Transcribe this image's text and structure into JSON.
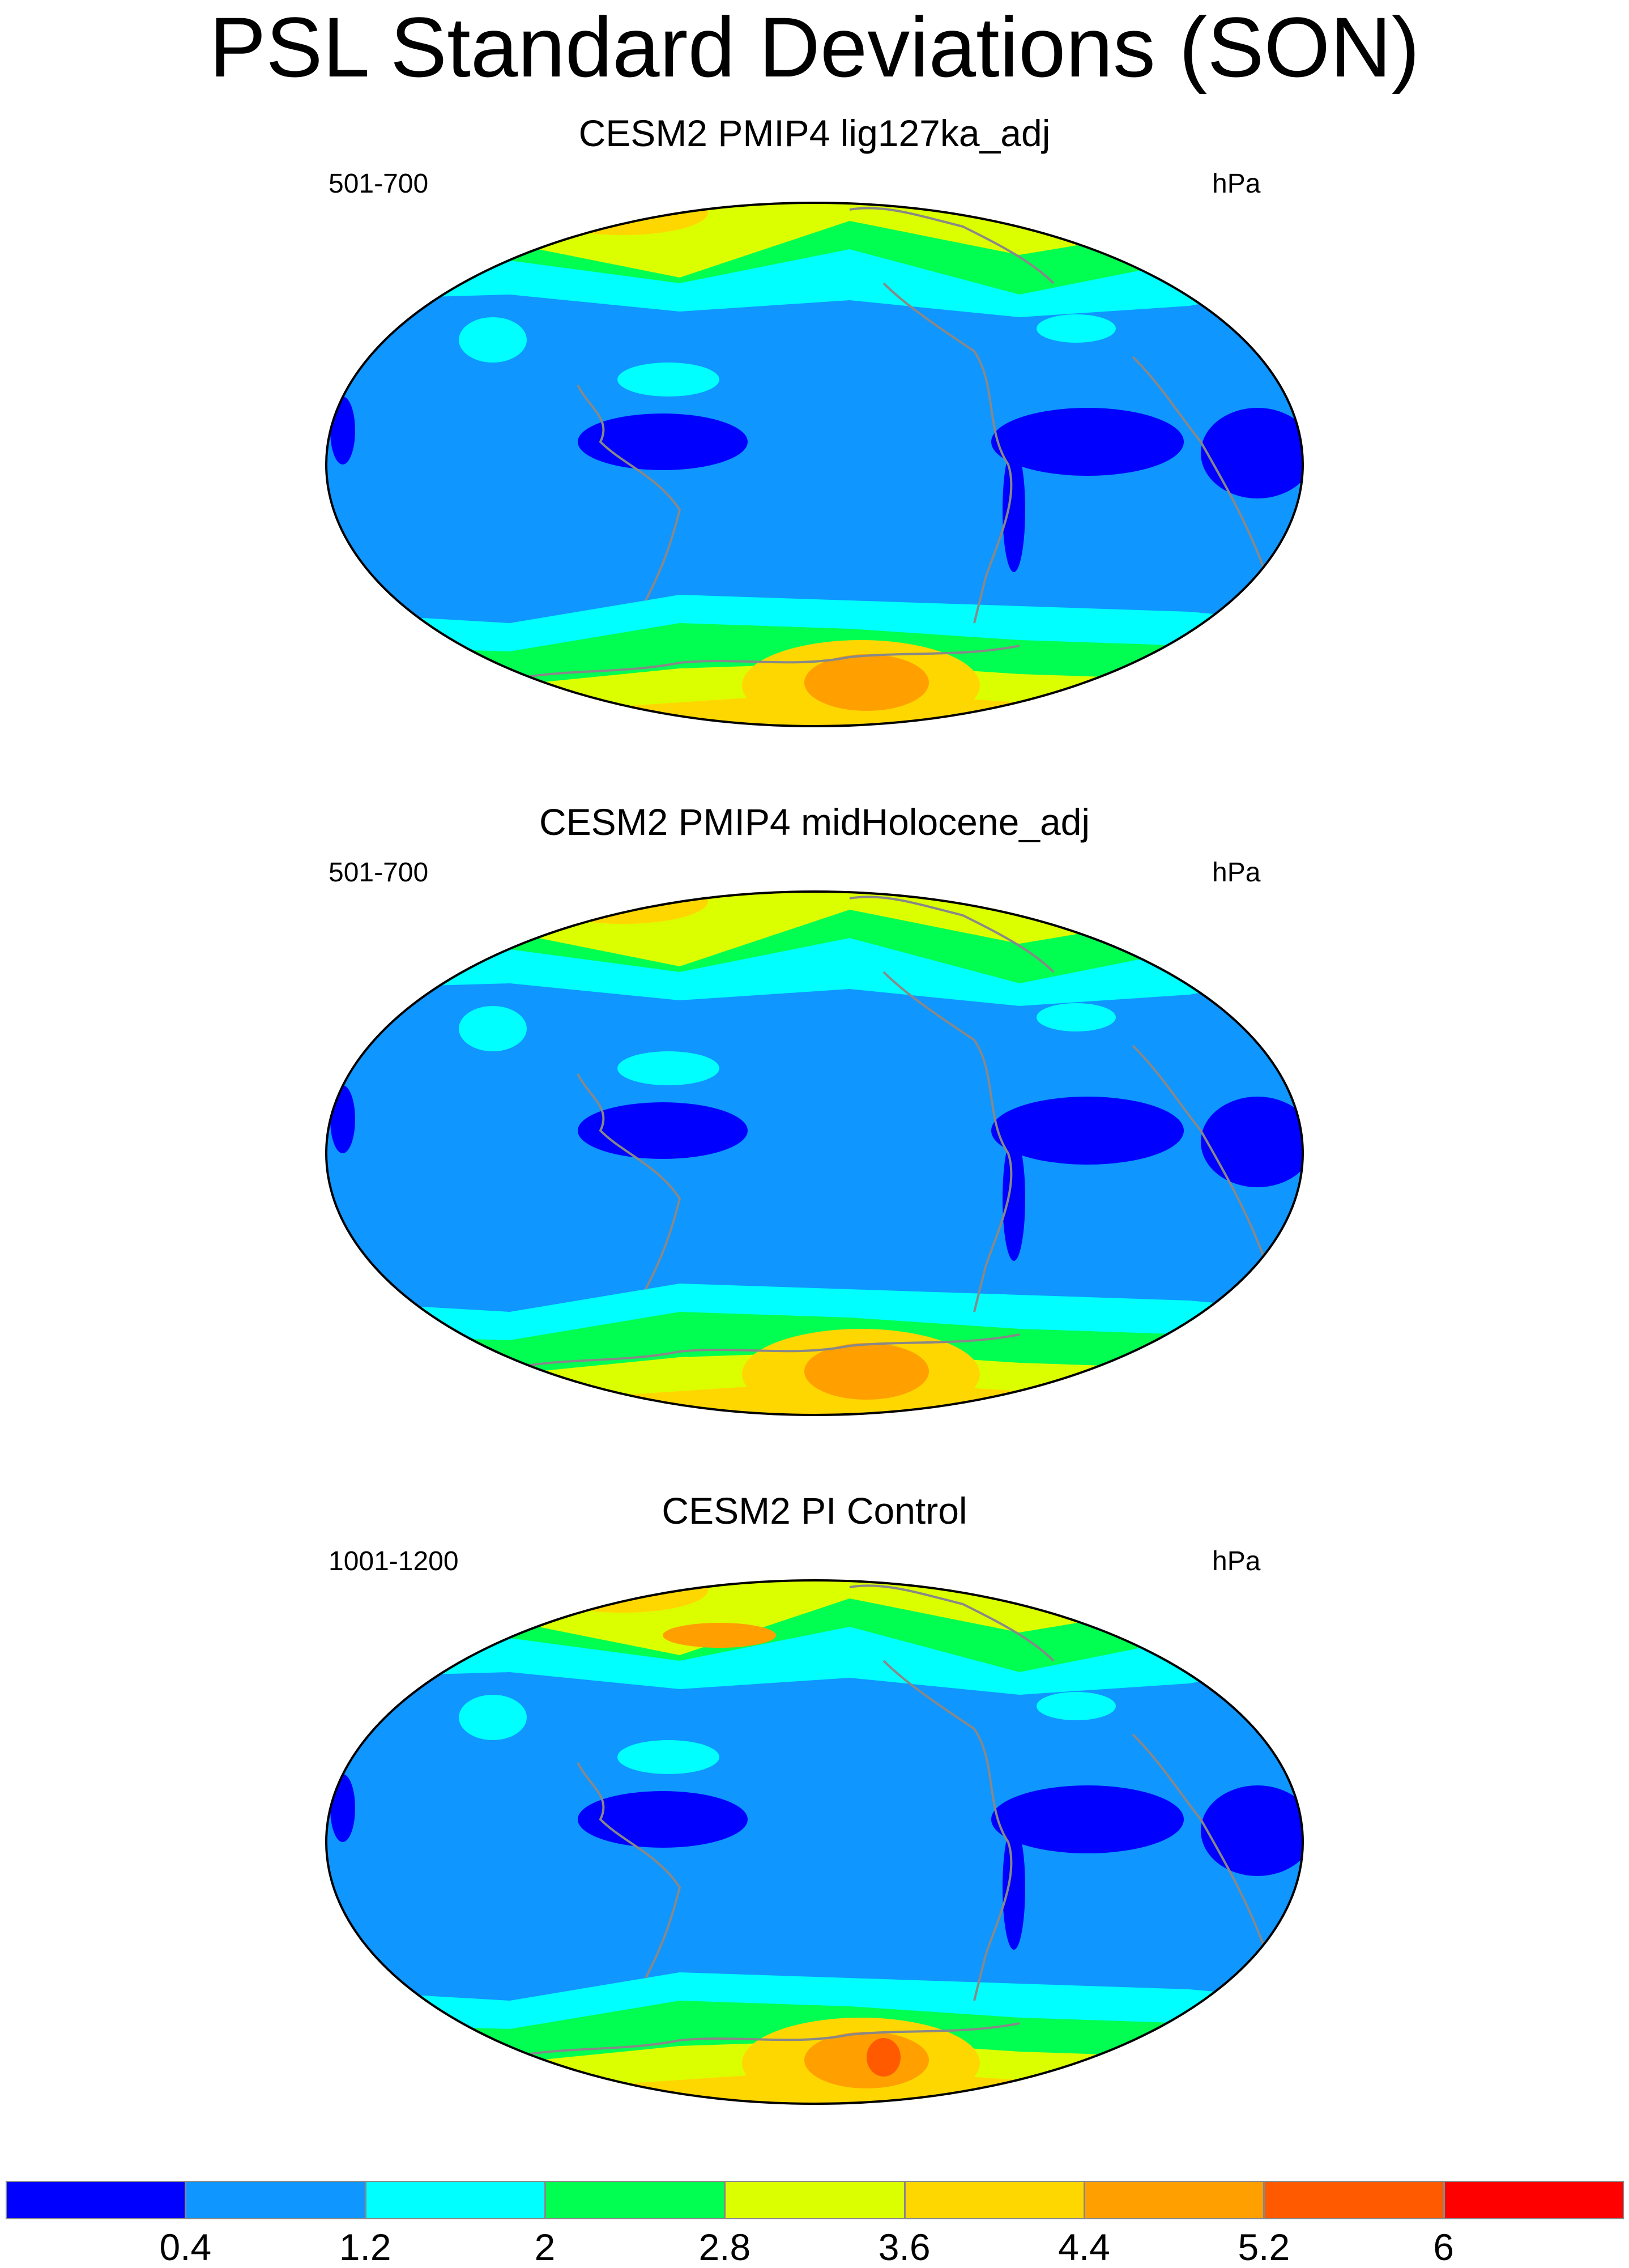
{
  "title": "PSL Standard Deviations (SON)",
  "colors": {
    "levels": [
      "#0000ff",
      "#0f96ff",
      "#00ffff",
      "#00ff50",
      "#dcff00",
      "#ffd700",
      "#ffa000",
      "#ff5a00",
      "#ff0000"
    ],
    "coastline": "#888888",
    "border": "#000000"
  },
  "panels": [
    {
      "title": "CESM2 PMIP4 lig127ka_adj",
      "years": "501-700",
      "units": "hPa",
      "max_level": 6
    },
    {
      "title": "CESM2 PMIP4 midHolocene_adj",
      "years": "501-700",
      "units": "hPa",
      "max_level": 6
    },
    {
      "title": "CESM2 PI Control",
      "years": "1001-1200",
      "units": "hPa",
      "max_level": 7
    }
  ],
  "colorbar": {
    "tick_labels": [
      "0.4",
      "1.2",
      "2",
      "2.8",
      "3.6",
      "4.4",
      "5.2",
      "6"
    ]
  }
}
